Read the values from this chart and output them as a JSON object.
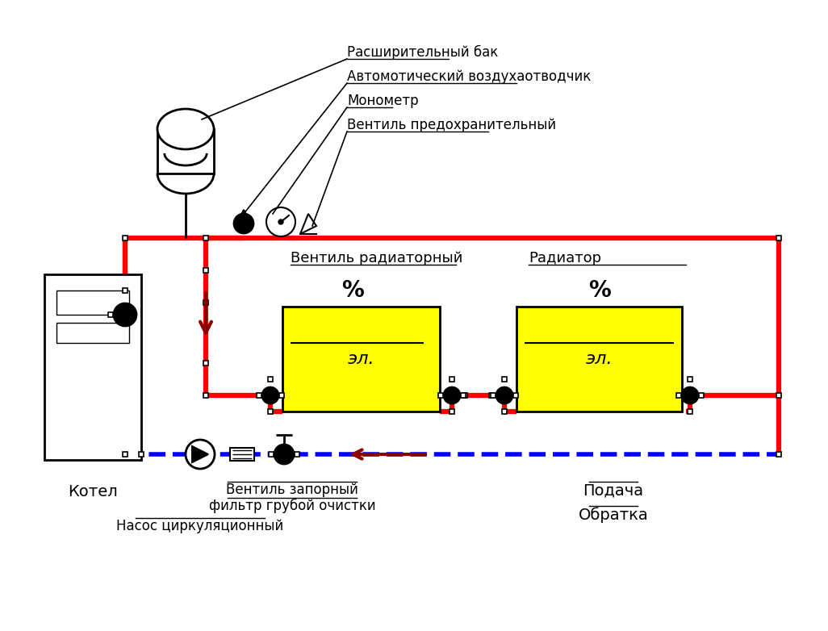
{
  "bg_color": "#ffffff",
  "red": "#ff0000",
  "dark_red": "#8b0000",
  "blue_dashed": "#0000ff",
  "black": "#000000",
  "yellow": "#ffff00",
  "label_color": "#000000",
  "labels": {
    "expansion_tank": "Расширительный бак",
    "air_vent": "Автомотический воздухаотводчик",
    "manometer": "Монометр",
    "safety_valve": "Вентиль предохранительный",
    "radiator_valve": "Вентиль радиаторный",
    "radiator": "Радиатор",
    "stop_valve": "Вентиль запорный",
    "coarse_filter": "фильтр грубой очистки",
    "pump": "Насос циркуляционный",
    "supply": "Подача",
    "return": "Обратка",
    "boiler": "Котел",
    "el1": "эл.",
    "el2": "эл.",
    "pct1": "%",
    "pct2": "%"
  }
}
